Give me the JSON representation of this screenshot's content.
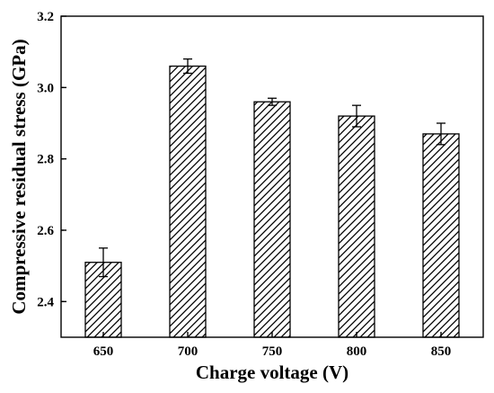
{
  "chart_data": {
    "type": "bar",
    "title": "",
    "xlabel": "Charge voltage (V)",
    "ylabel": "Compressive residual stress (GPa)",
    "categories": [
      "650",
      "700",
      "750",
      "800",
      "850"
    ],
    "values": [
      2.51,
      3.06,
      2.96,
      2.92,
      2.87
    ],
    "errors": [
      0.04,
      0.02,
      0.01,
      0.03,
      0.03
    ],
    "ylim": [
      2.3,
      3.2
    ],
    "yticks": [
      2.4,
      2.6,
      2.8,
      3.0,
      3.2
    ],
    "ytick_labels": [
      "2.4",
      "2.6",
      "2.8",
      "3.0",
      "3.2"
    ],
    "bar_fill": "hatched diagonal",
    "grid": false,
    "legend": "none",
    "colors": {
      "bar_edge": "#000000",
      "hatch": "#000000",
      "background": "#ffffff"
    }
  }
}
